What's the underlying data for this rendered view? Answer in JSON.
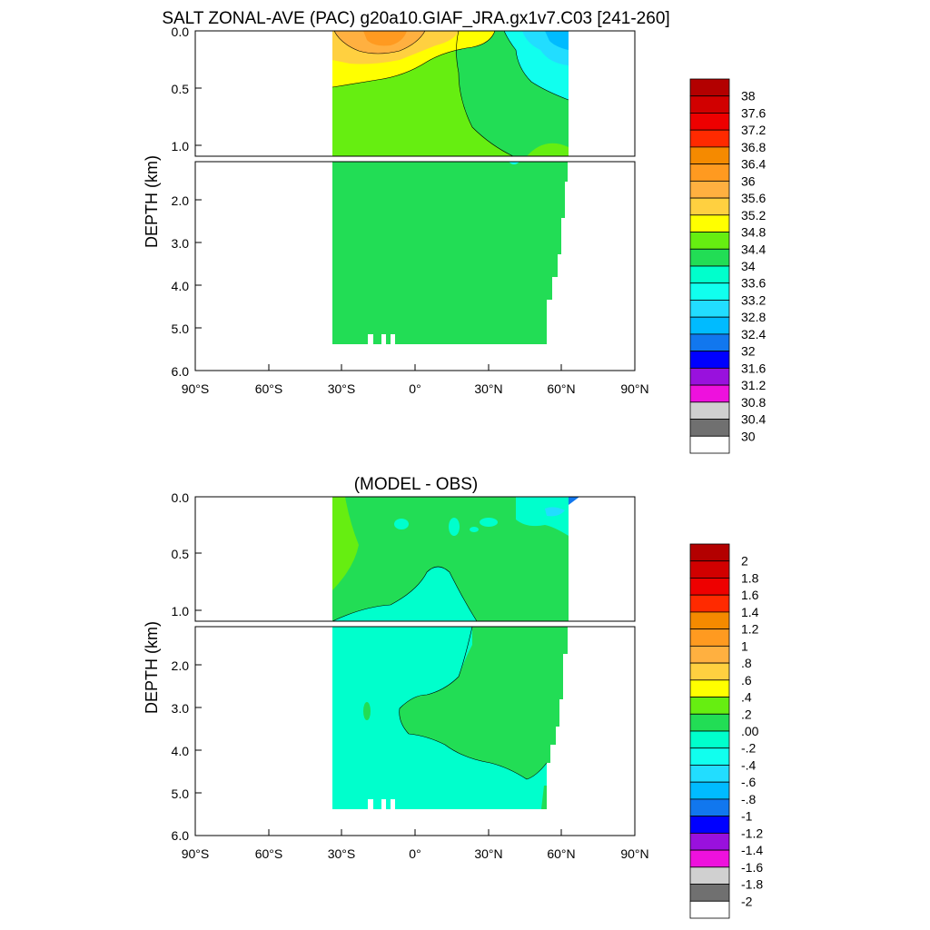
{
  "chart_data": [
    {
      "type": "heatmap",
      "title": "SALT ZONAL-AVE (PAC) g20a10.GIAF_JRA.gx1v7.C03 [241-260]",
      "ylabel": "DEPTH (km)",
      "xlabel": "",
      "x_ticks": [
        "90°S",
        "60°S",
        "30°S",
        "0°",
        "30°N",
        "60°N",
        "90°N"
      ],
      "upper_y_ticks": [
        "0.0",
        "0.5",
        "1.0"
      ],
      "lower_y_ticks": [
        "2.0",
        "3.0",
        "4.0",
        "5.0",
        "6.0"
      ],
      "xlim": [
        -90,
        90
      ],
      "upper_depth_range_km": [
        0,
        1.1
      ],
      "lower_depth_range_km": [
        1.1,
        6.0
      ],
      "colorbar_labels": [
        "38",
        "37.6",
        "37.2",
        "36.8",
        "36.4",
        "36",
        "35.6",
        "35.2",
        "34.8",
        "34.4",
        "34",
        "33.6",
        "33.2",
        "32.8",
        "32.4",
        "32",
        "31.6",
        "31.2",
        "30.8",
        "30.4",
        "30"
      ],
      "colorbar_colors": [
        "#b30000",
        "#d10000",
        "#ee0000",
        "#ff2a00",
        "#f58a00",
        "#ff9a20",
        "#ffb040",
        "#ffd040",
        "#ffff00",
        "#66ee11",
        "#22dd55",
        "#00ffcc",
        "#11ffee",
        "#22ddff",
        "#00bbff",
        "#1177ee",
        "#0000ff",
        "#9911dd",
        "#ee11dd",
        "#d0d0d0",
        "#707070",
        "#ffffff"
      ]
    },
    {
      "type": "heatmap",
      "title": "(MODEL - OBS)",
      "ylabel": "DEPTH (km)",
      "xlabel": "",
      "x_ticks": [
        "90°S",
        "60°S",
        "30°S",
        "0°",
        "30°N",
        "60°N",
        "90°N"
      ],
      "upper_y_ticks": [
        "0.0",
        "0.5",
        "1.0"
      ],
      "lower_y_ticks": [
        "2.0",
        "3.0",
        "4.0",
        "5.0",
        "6.0"
      ],
      "xlim": [
        -90,
        90
      ],
      "upper_depth_range_km": [
        0,
        1.1
      ],
      "lower_depth_range_km": [
        1.1,
        6.0
      ],
      "colorbar_labels": [
        "2",
        "1.8",
        "1.6",
        "1.4",
        "1.2",
        "1",
        ".8",
        ".6",
        ".4",
        ".2",
        ".00",
        "-.2",
        "-.4",
        "-.6",
        "-.8",
        "-1",
        "-1.2",
        "-1.4",
        "-1.6",
        "-1.8",
        "-2"
      ],
      "colorbar_colors": [
        "#b30000",
        "#d10000",
        "#ee0000",
        "#ff2a00",
        "#f58a00",
        "#ff9a20",
        "#ffb040",
        "#ffd040",
        "#ffff00",
        "#66ee11",
        "#22dd55",
        "#00ffcc",
        "#11ffee",
        "#22ddff",
        "#00bbff",
        "#1177ee",
        "#0000ff",
        "#9911dd",
        "#ee11dd",
        "#d0d0d0",
        "#707070",
        "#ffffff"
      ]
    }
  ]
}
